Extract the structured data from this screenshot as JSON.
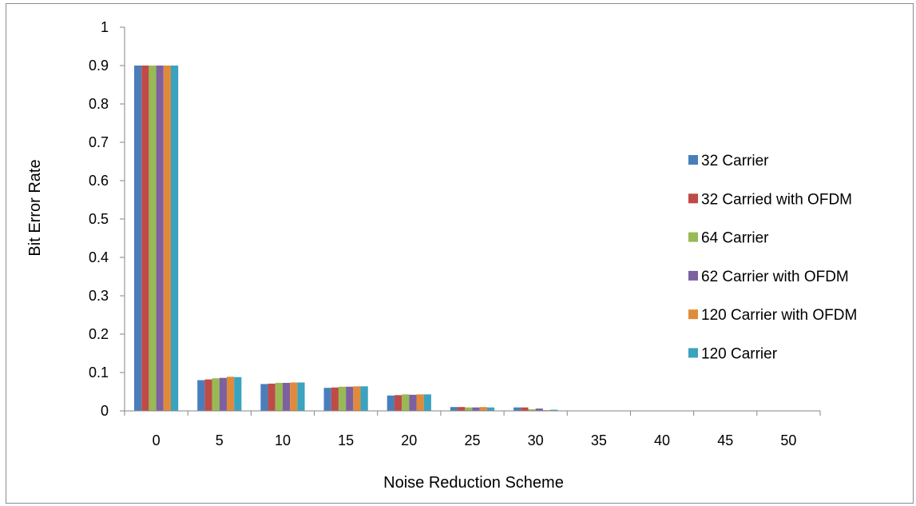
{
  "chart_data": {
    "type": "bar",
    "title": "",
    "xlabel": "Noise Reduction Scheme",
    "ylabel": "Bit Error Rate",
    "ylim": [
      0,
      1
    ],
    "yticks": [
      "0",
      "0.1",
      "0.2",
      "0.3",
      "0.4",
      "0.5",
      "0.6",
      "0.7",
      "0.8",
      "0.9",
      "1"
    ],
    "categories": [
      "0",
      "5",
      "10",
      "15",
      "20",
      "25",
      "30",
      "35",
      "40",
      "45",
      "50"
    ],
    "grid": false,
    "legend_position": "right",
    "series": [
      {
        "name": "32 Carrier",
        "color": "#4a7ebb",
        "values": [
          0.9,
          0.08,
          0.07,
          0.06,
          0.04,
          0.01,
          0.009,
          0.001,
          0,
          0,
          0
        ]
      },
      {
        "name": "32 Carried with OFDM",
        "color": "#be4b48",
        "values": [
          0.9,
          0.082,
          0.071,
          0.061,
          0.041,
          0.01,
          0.009,
          0,
          0,
          0,
          0
        ]
      },
      {
        "name": "64 Carrier",
        "color": "#98b954",
        "values": [
          0.9,
          0.085,
          0.073,
          0.063,
          0.043,
          0.009,
          0.004,
          0,
          0,
          0,
          0
        ]
      },
      {
        "name": "62 Carrier with OFDM",
        "color": "#7d60a0",
        "values": [
          0.9,
          0.086,
          0.073,
          0.063,
          0.042,
          0.009,
          0.006,
          0,
          0,
          0,
          0
        ]
      },
      {
        "name": "120 Carrier with OFDM",
        "color": "#e08b3b",
        "values": [
          0.9,
          0.089,
          0.074,
          0.064,
          0.043,
          0.01,
          0.002,
          0,
          0,
          0,
          0
        ]
      },
      {
        "name": "120 Carrier",
        "color": "#3aa3bf",
        "values": [
          0.9,
          0.088,
          0.074,
          0.064,
          0.043,
          0.009,
          0.003,
          0,
          0,
          0,
          0
        ]
      }
    ]
  }
}
